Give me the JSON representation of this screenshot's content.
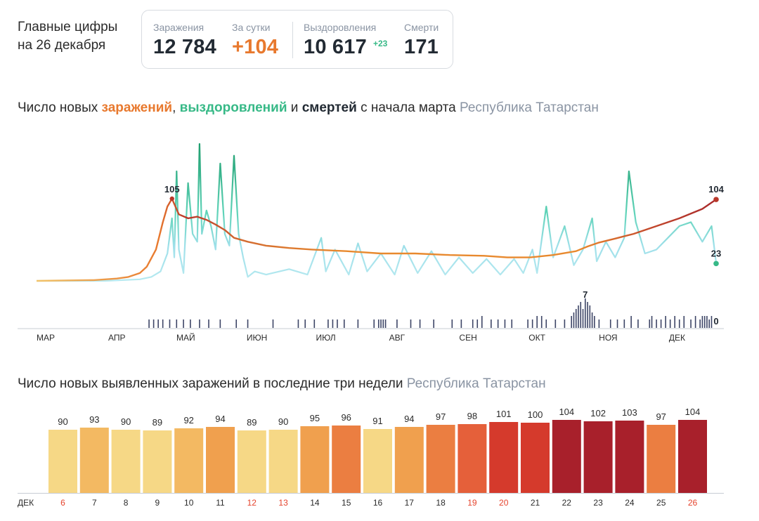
{
  "header": {
    "title_line1": "Главные цифры",
    "title_line2": "на 26 декабря"
  },
  "stats": {
    "infections": {
      "label": "Заражения",
      "value": "12 784"
    },
    "daily": {
      "label": "За сутки",
      "value": "+104"
    },
    "recoveries": {
      "label": "Выздоровления",
      "value": "10 617",
      "delta": "+23"
    },
    "deaths": {
      "label": "Смерти",
      "value": "171"
    }
  },
  "colors": {
    "infections": "#e8792e",
    "infections_dark": "#b8372a",
    "recoveries": "#37b987",
    "recoveries_light": "#9fe0ea",
    "deaths": "#3d4566"
  },
  "chart1": {
    "title_parts": {
      "p1": "Число новых ",
      "infections": "заражений",
      "p2": ", ",
      "recoveries": "выздоровлений",
      "p3": " и ",
      "deaths": "смертей",
      "p4": " с начала марта",
      "region": "Республика Татарстан"
    }
  },
  "chart2": {
    "title": "Число новых выявленных заражений в последние три недели",
    "region": "Республика Татарстан"
  },
  "chart_data": [
    {
      "type": "line",
      "months": [
        "МАР",
        "АПР",
        "МАЙ",
        "ИЮН",
        "ИЮЛ",
        "АВГ",
        "СЕН",
        "ОКТ",
        "НОЯ",
        "ДЕК"
      ],
      "series": [
        {
          "points": [
            [
              0,
              0
            ],
            [
              25,
              1
            ],
            [
              35,
              3
            ],
            [
              40,
              5
            ],
            [
              45,
              10
            ],
            [
              48,
              18
            ],
            [
              52,
              40
            ],
            [
              55,
              75
            ],
            [
              57,
              95
            ],
            [
              59,
              105
            ],
            [
              62,
              85
            ],
            [
              66,
              80
            ],
            [
              70,
              82
            ],
            [
              74,
              78
            ],
            [
              78,
              72
            ],
            [
              82,
              65
            ],
            [
              86,
              55
            ],
            [
              92,
              50
            ],
            [
              100,
              45
            ],
            [
              110,
              42
            ],
            [
              120,
              40
            ],
            [
              135,
              38
            ],
            [
              150,
              35
            ],
            [
              165,
              35
            ],
            [
              180,
              33
            ],
            [
              195,
              32
            ],
            [
              205,
              30
            ],
            [
              215,
              30
            ],
            [
              225,
              33
            ],
            [
              235,
              38
            ],
            [
              240,
              44
            ],
            [
              245,
              49
            ],
            [
              252,
              54
            ],
            [
              260,
              60
            ],
            [
              270,
              70
            ],
            [
              280,
              80
            ],
            [
              290,
              92
            ],
            [
              296,
              104
            ]
          ]
        },
        {
          "points": [
            [
              0,
              0
            ],
            [
              30,
              0
            ],
            [
              45,
              2
            ],
            [
              50,
              5
            ],
            [
              54,
              12
            ],
            [
              57,
              35
            ],
            [
              59,
              80
            ],
            [
              60,
              30
            ],
            [
              61,
              140
            ],
            [
              62,
              40
            ],
            [
              64,
              10
            ],
            [
              66,
              125
            ],
            [
              68,
              60
            ],
            [
              70,
              50
            ],
            [
              71,
              175
            ],
            [
              72,
              60
            ],
            [
              74,
              90
            ],
            [
              76,
              70
            ],
            [
              78,
              40
            ],
            [
              80,
              150
            ],
            [
              82,
              60
            ],
            [
              84,
              45
            ],
            [
              86,
              160
            ],
            [
              88,
              60
            ],
            [
              90,
              30
            ],
            [
              92,
              5
            ],
            [
              95,
              12
            ],
            [
              100,
              8
            ],
            [
              110,
              15
            ],
            [
              118,
              8
            ],
            [
              124,
              55
            ],
            [
              126,
              12
            ],
            [
              130,
              40
            ],
            [
              136,
              8
            ],
            [
              140,
              48
            ],
            [
              144,
              12
            ],
            [
              150,
              35
            ],
            [
              156,
              8
            ],
            [
              160,
              45
            ],
            [
              166,
              10
            ],
            [
              172,
              38
            ],
            [
              178,
              8
            ],
            [
              184,
              30
            ],
            [
              190,
              10
            ],
            [
              196,
              28
            ],
            [
              202,
              8
            ],
            [
              208,
              28
            ],
            [
              212,
              10
            ],
            [
              216,
              40
            ],
            [
              218,
              10
            ],
            [
              222,
              95
            ],
            [
              225,
              30
            ],
            [
              230,
              70
            ],
            [
              234,
              20
            ],
            [
              238,
              40
            ],
            [
              242,
              80
            ],
            [
              244,
              25
            ],
            [
              248,
              50
            ],
            [
              252,
              30
            ],
            [
              256,
              55
            ],
            [
              258,
              140
            ],
            [
              261,
              75
            ],
            [
              265,
              35
            ],
            [
              270,
              40
            ],
            [
              275,
              55
            ],
            [
              280,
              70
            ],
            [
              285,
              75
            ],
            [
              290,
              50
            ],
            [
              294,
              70
            ],
            [
              296,
              23
            ]
          ]
        },
        {
          "bars": [
            [
              49,
              1
            ],
            [
              51,
              1
            ],
            [
              53,
              1
            ],
            [
              55,
              1
            ],
            [
              58,
              1
            ],
            [
              61,
              1
            ],
            [
              64,
              1
            ],
            [
              67,
              1
            ],
            [
              71,
              1
            ],
            [
              75,
              1
            ],
            [
              80,
              1
            ],
            [
              87,
              1
            ],
            [
              92,
              1
            ],
            [
              103,
              1
            ],
            [
              114,
              1
            ],
            [
              117,
              1
            ],
            [
              121,
              1
            ],
            [
              127,
              1
            ],
            [
              129,
              1
            ],
            [
              131,
              1
            ],
            [
              134,
              1
            ],
            [
              140,
              1
            ],
            [
              147,
              1
            ],
            [
              149,
              1
            ],
            [
              150,
              1
            ],
            [
              151,
              1
            ],
            [
              152,
              1
            ],
            [
              157,
              1
            ],
            [
              163,
              1
            ],
            [
              167,
              1
            ],
            [
              173,
              1
            ],
            [
              181,
              1
            ],
            [
              185,
              1
            ],
            [
              190,
              1
            ],
            [
              192,
              1
            ],
            [
              194,
              2
            ],
            [
              198,
              1
            ],
            [
              201,
              1
            ],
            [
              204,
              1
            ],
            [
              207,
              1
            ],
            [
              214,
              1
            ],
            [
              216,
              1
            ],
            [
              218,
              2
            ],
            [
              220,
              2
            ],
            [
              222,
              1
            ],
            [
              226,
              1
            ],
            [
              230,
              1
            ],
            [
              233,
              2
            ],
            [
              234,
              3
            ],
            [
              235,
              4
            ],
            [
              236,
              5
            ],
            [
              237,
              6
            ],
            [
              238,
              4
            ],
            [
              239,
              7
            ],
            [
              240,
              6
            ],
            [
              241,
              5
            ],
            [
              242,
              3
            ],
            [
              243,
              2
            ],
            [
              245,
              1
            ],
            [
              250,
              1
            ],
            [
              253,
              1
            ],
            [
              256,
              1
            ],
            [
              259,
              2
            ],
            [
              262,
              1
            ],
            [
              267,
              1
            ],
            [
              268,
              2
            ],
            [
              270,
              1
            ],
            [
              272,
              1
            ],
            [
              274,
              2
            ],
            [
              276,
              1
            ],
            [
              278,
              2
            ],
            [
              280,
              1
            ],
            [
              282,
              2
            ],
            [
              285,
              1
            ],
            [
              287,
              2
            ],
            [
              289,
              1
            ],
            [
              290,
              2
            ],
            [
              291,
              2
            ],
            [
              292,
              2
            ],
            [
              293,
              1
            ],
            [
              294,
              2
            ],
            [
              296,
              0
            ]
          ]
        }
      ],
      "annotations": {
        "infections_peak": "105",
        "infections_last": "104",
        "recoveries_last": "23",
        "deaths_peak": "7",
        "deaths_last": "0"
      }
    },
    {
      "type": "bar",
      "month_label": "ДЕК",
      "categories": [
        "6",
        "7",
        "8",
        "9",
        "10",
        "11",
        "12",
        "13",
        "14",
        "15",
        "16",
        "17",
        "18",
        "19",
        "20",
        "21",
        "22",
        "23",
        "24",
        "25",
        "26"
      ],
      "values": [
        90,
        93,
        90,
        89,
        92,
        94,
        89,
        90,
        95,
        96,
        91,
        94,
        97,
        98,
        101,
        100,
        104,
        102,
        103,
        97,
        104
      ],
      "weekend": [
        true,
        false,
        false,
        false,
        false,
        false,
        true,
        true,
        false,
        false,
        false,
        false,
        false,
        true,
        true,
        false,
        false,
        false,
        false,
        false,
        true
      ]
    }
  ]
}
